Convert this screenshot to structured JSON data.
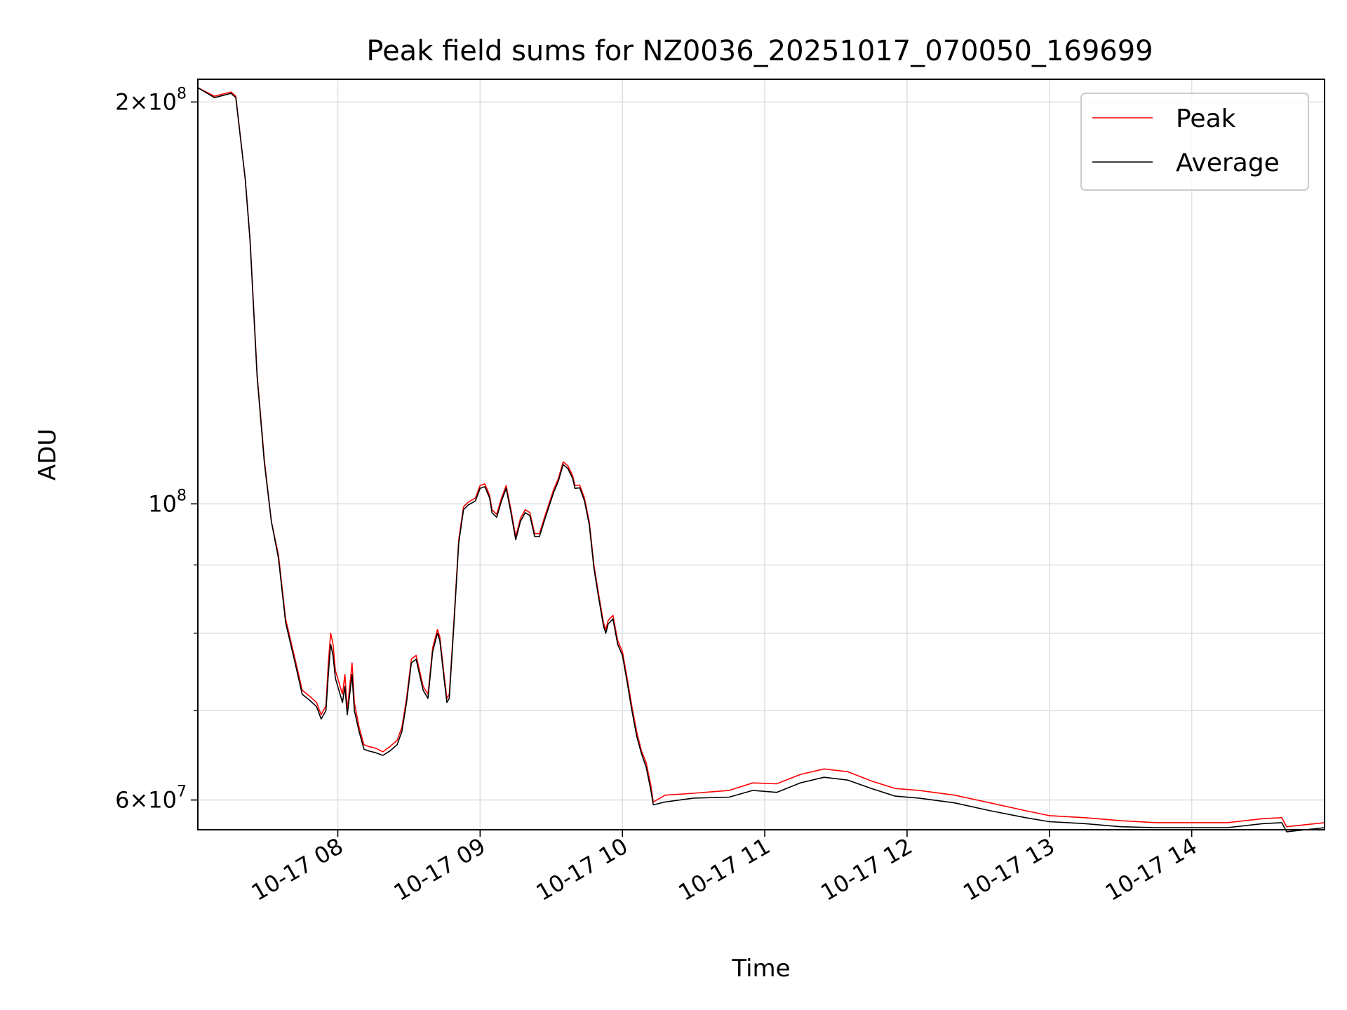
{
  "chart_data": {
    "type": "line",
    "title": "Peak field sums for NZ0036_20251017_070050_169699",
    "xlabel": "Time",
    "ylabel": "ADU",
    "x_scale": "time",
    "y_scale": "log",
    "xlim": [
      "2025-10-17 07:01",
      "2025-10-17 14:56"
    ],
    "ylim": [
      57000000,
      208000000
    ],
    "x_ticks": [
      {
        "value": "2025-10-17 08:00",
        "label": "10-17 08"
      },
      {
        "value": "2025-10-17 09:00",
        "label": "10-17 09"
      },
      {
        "value": "2025-10-17 10:00",
        "label": "10-17 10"
      },
      {
        "value": "2025-10-17 11:00",
        "label": "10-17 11"
      },
      {
        "value": "2025-10-17 12:00",
        "label": "10-17 12"
      },
      {
        "value": "2025-10-17 13:00",
        "label": "10-17 13"
      },
      {
        "value": "2025-10-17 14:00",
        "label": "10-17 14"
      }
    ],
    "y_ticks": [
      {
        "value": 200000000,
        "base": "2×10",
        "exp": "8"
      },
      {
        "value": 100000000,
        "base": "10",
        "exp": "8"
      },
      {
        "value": 60000000,
        "base": "6×10",
        "exp": "7"
      }
    ],
    "y_minor_ticks": [
      70000000,
      80000000,
      90000000
    ],
    "grid": true,
    "legend_position": "top-right",
    "series": [
      {
        "name": "Peak",
        "color": "#ff0000",
        "points": [
          [
            "2025-10-17 07:01",
            205000000
          ],
          [
            "2025-10-17 07:08",
            202000000
          ],
          [
            "2025-10-17 07:15",
            203500000
          ],
          [
            "2025-10-17 07:17",
            202000000
          ],
          [
            "2025-10-17 07:21",
            175000000
          ],
          [
            "2025-10-17 07:23",
            158000000
          ],
          [
            "2025-10-17 07:26",
            125000000
          ],
          [
            "2025-10-17 07:29",
            108000000
          ],
          [
            "2025-10-17 07:32",
            97000000
          ],
          [
            "2025-10-17 07:35",
            91500000
          ],
          [
            "2025-10-17 07:38",
            82000000
          ],
          [
            "2025-10-17 07:42",
            76500000
          ],
          [
            "2025-10-17 07:45",
            72500000
          ],
          [
            "2025-10-17 07:48",
            71800000
          ],
          [
            "2025-10-17 07:51",
            71000000
          ],
          [
            "2025-10-17 07:53",
            69500000
          ],
          [
            "2025-10-17 07:55",
            70600000
          ],
          [
            "2025-10-17 07:56",
            76000000
          ],
          [
            "2025-10-17 07:57",
            80000000
          ],
          [
            "2025-10-17 07:58",
            78500000
          ],
          [
            "2025-10-17 07:59",
            75000000
          ],
          [
            "2025-10-17 08:02",
            72000000
          ],
          [
            "2025-10-17 08:03",
            74500000
          ],
          [
            "2025-10-17 08:04",
            70000000
          ],
          [
            "2025-10-17 08:06",
            76000000
          ],
          [
            "2025-10-17 08:07",
            71000000
          ],
          [
            "2025-10-17 08:09",
            68000000
          ],
          [
            "2025-10-17 08:11",
            66000000
          ],
          [
            "2025-10-17 08:13",
            65800000
          ],
          [
            "2025-10-17 08:16",
            65600000
          ],
          [
            "2025-10-17 08:19",
            65200000
          ],
          [
            "2025-10-17 08:22",
            65800000
          ],
          [
            "2025-10-17 08:25",
            66500000
          ],
          [
            "2025-10-17 08:27",
            68000000
          ],
          [
            "2025-10-17 08:29",
            71500000
          ],
          [
            "2025-10-17 08:31",
            76500000
          ],
          [
            "2025-10-17 08:33",
            77000000
          ],
          [
            "2025-10-17 08:36",
            73000000
          ],
          [
            "2025-10-17 08:38",
            72000000
          ],
          [
            "2025-10-17 08:40",
            78000000
          ],
          [
            "2025-10-17 08:42",
            80500000
          ],
          [
            "2025-10-17 08:43",
            79500000
          ],
          [
            "2025-10-17 08:45",
            74000000
          ],
          [
            "2025-10-17 08:46",
            71500000
          ],
          [
            "2025-10-17 08:47",
            72000000
          ],
          [
            "2025-10-17 08:49",
            82000000
          ],
          [
            "2025-10-17 08:51",
            94000000
          ],
          [
            "2025-10-17 08:53",
            99500000
          ],
          [
            "2025-10-17 08:55",
            100300000
          ],
          [
            "2025-10-17 08:58",
            101000000
          ],
          [
            "2025-10-17 09:00",
            103200000
          ],
          [
            "2025-10-17 09:02",
            103500000
          ],
          [
            "2025-10-17 09:04",
            101500000
          ],
          [
            "2025-10-17 09:05",
            99000000
          ],
          [
            "2025-10-17 09:07",
            98200000
          ],
          [
            "2025-10-17 09:09",
            101000000
          ],
          [
            "2025-10-17 09:11",
            103200000
          ],
          [
            "2025-10-17 09:13",
            99000000
          ],
          [
            "2025-10-17 09:15",
            94500000
          ],
          [
            "2025-10-17 09:17",
            97500000
          ],
          [
            "2025-10-17 09:19",
            99000000
          ],
          [
            "2025-10-17 09:21",
            98500000
          ],
          [
            "2025-10-17 09:23",
            95000000
          ],
          [
            "2025-10-17 09:25",
            95000000
          ],
          [
            "2025-10-17 09:27",
            97500000
          ],
          [
            "2025-10-17 09:29",
            100000000
          ],
          [
            "2025-10-17 09:31",
            102500000
          ],
          [
            "2025-10-17 09:33",
            104500000
          ],
          [
            "2025-10-17 09:35",
            107500000
          ],
          [
            "2025-10-17 09:37",
            106800000
          ],
          [
            "2025-10-17 09:39",
            105000000
          ],
          [
            "2025-10-17 09:40",
            103200000
          ],
          [
            "2025-10-17 09:42",
            103300000
          ],
          [
            "2025-10-17 09:44",
            101000000
          ],
          [
            "2025-10-17 09:46",
            97000000
          ],
          [
            "2025-10-17 09:48",
            90000000
          ],
          [
            "2025-10-17 09:50",
            85500000
          ],
          [
            "2025-10-17 09:52",
            81500000
          ],
          [
            "2025-10-17 09:53",
            80500000
          ],
          [
            "2025-10-17 09:54",
            81800000
          ],
          [
            "2025-10-17 09:56",
            82500000
          ],
          [
            "2025-10-17 09:58",
            79000000
          ],
          [
            "2025-10-17 10:00",
            77500000
          ],
          [
            "2025-10-17 10:02",
            74000000
          ],
          [
            "2025-10-17 10:04",
            70500000
          ],
          [
            "2025-10-17 10:06",
            67500000
          ],
          [
            "2025-10-17 10:08",
            65300000
          ],
          [
            "2025-10-17 10:10",
            64000000
          ],
          [
            "2025-10-17 10:12",
            61500000
          ],
          [
            "2025-10-17 10:13",
            59800000
          ],
          [
            "2025-10-17 10:18",
            60500000
          ],
          [
            "2025-10-17 10:30",
            60700000
          ],
          [
            "2025-10-17 10:45",
            61000000
          ],
          [
            "2025-10-17 10:55",
            61800000
          ],
          [
            "2025-10-17 11:05",
            61700000
          ],
          [
            "2025-10-17 11:15",
            62700000
          ],
          [
            "2025-10-17 11:25",
            63300000
          ],
          [
            "2025-10-17 11:35",
            63000000
          ],
          [
            "2025-10-17 11:45",
            62000000
          ],
          [
            "2025-10-17 11:55",
            61200000
          ],
          [
            "2025-10-17 12:05",
            61000000
          ],
          [
            "2025-10-17 12:20",
            60500000
          ],
          [
            "2025-10-17 12:35",
            59700000
          ],
          [
            "2025-10-17 12:50",
            58900000
          ],
          [
            "2025-10-17 13:00",
            58400000
          ],
          [
            "2025-10-17 13:15",
            58200000
          ],
          [
            "2025-10-17 13:30",
            57900000
          ],
          [
            "2025-10-17 13:45",
            57700000
          ],
          [
            "2025-10-17 14:00",
            57700000
          ],
          [
            "2025-10-17 14:15",
            57700000
          ],
          [
            "2025-10-17 14:30",
            58100000
          ],
          [
            "2025-10-17 14:38",
            58200000
          ],
          [
            "2025-10-17 14:40",
            57300000
          ],
          [
            "2025-10-17 14:48",
            57500000
          ],
          [
            "2025-10-17 14:56",
            57700000
          ]
        ]
      },
      {
        "name": "Average",
        "color": "#000000",
        "points": [
          [
            "2025-10-17 07:01",
            205000000
          ],
          [
            "2025-10-17 07:08",
            201500000
          ],
          [
            "2025-10-17 07:15",
            203000000
          ],
          [
            "2025-10-17 07:17",
            201500000
          ],
          [
            "2025-10-17 07:21",
            175000000
          ],
          [
            "2025-10-17 07:23",
            157500000
          ],
          [
            "2025-10-17 07:26",
            124500000
          ],
          [
            "2025-10-17 07:29",
            107500000
          ],
          [
            "2025-10-17 07:32",
            97000000
          ],
          [
            "2025-10-17 07:35",
            91000000
          ],
          [
            "2025-10-17 07:38",
            81500000
          ],
          [
            "2025-10-17 07:42",
            76000000
          ],
          [
            "2025-10-17 07:45",
            72000000
          ],
          [
            "2025-10-17 07:48",
            71300000
          ],
          [
            "2025-10-17 07:51",
            70500000
          ],
          [
            "2025-10-17 07:53",
            69000000
          ],
          [
            "2025-10-17 07:55",
            70000000
          ],
          [
            "2025-10-17 07:56",
            74500000
          ],
          [
            "2025-10-17 07:57",
            78500000
          ],
          [
            "2025-10-17 07:58",
            77000000
          ],
          [
            "2025-10-17 07:59",
            74000000
          ],
          [
            "2025-10-17 08:02",
            71000000
          ],
          [
            "2025-10-17 08:03",
            73000000
          ],
          [
            "2025-10-17 08:04",
            69500000
          ],
          [
            "2025-10-17 08:06",
            74500000
          ],
          [
            "2025-10-17 08:07",
            70000000
          ],
          [
            "2025-10-17 08:09",
            67500000
          ],
          [
            "2025-10-17 08:11",
            65500000
          ],
          [
            "2025-10-17 08:13",
            65300000
          ],
          [
            "2025-10-17 08:16",
            65100000
          ],
          [
            "2025-10-17 08:19",
            64800000
          ],
          [
            "2025-10-17 08:22",
            65300000
          ],
          [
            "2025-10-17 08:25",
            66000000
          ],
          [
            "2025-10-17 08:27",
            67500000
          ],
          [
            "2025-10-17 08:29",
            71000000
          ],
          [
            "2025-10-17 08:31",
            76000000
          ],
          [
            "2025-10-17 08:33",
            76500000
          ],
          [
            "2025-10-17 08:36",
            72500000
          ],
          [
            "2025-10-17 08:38",
            71500000
          ],
          [
            "2025-10-17 08:40",
            77500000
          ],
          [
            "2025-10-17 08:42",
            80000000
          ],
          [
            "2025-10-17 08:43",
            79000000
          ],
          [
            "2025-10-17 08:45",
            73500000
          ],
          [
            "2025-10-17 08:46",
            71000000
          ],
          [
            "2025-10-17 08:47",
            71500000
          ],
          [
            "2025-10-17 08:49",
            81500000
          ],
          [
            "2025-10-17 08:51",
            93500000
          ],
          [
            "2025-10-17 08:53",
            99000000
          ],
          [
            "2025-10-17 08:55",
            99800000
          ],
          [
            "2025-10-17 08:58",
            100500000
          ],
          [
            "2025-10-17 09:00",
            102700000
          ],
          [
            "2025-10-17 09:02",
            103000000
          ],
          [
            "2025-10-17 09:04",
            101000000
          ],
          [
            "2025-10-17 09:05",
            98500000
          ],
          [
            "2025-10-17 09:07",
            97700000
          ],
          [
            "2025-10-17 09:09",
            100500000
          ],
          [
            "2025-10-17 09:11",
            102700000
          ],
          [
            "2025-10-17 09:13",
            98500000
          ],
          [
            "2025-10-17 09:15",
            94000000
          ],
          [
            "2025-10-17 09:17",
            97000000
          ],
          [
            "2025-10-17 09:19",
            98500000
          ],
          [
            "2025-10-17 09:21",
            98000000
          ],
          [
            "2025-10-17 09:23",
            94500000
          ],
          [
            "2025-10-17 09:25",
            94500000
          ],
          [
            "2025-10-17 09:27",
            97000000
          ],
          [
            "2025-10-17 09:29",
            99500000
          ],
          [
            "2025-10-17 09:31",
            102000000
          ],
          [
            "2025-10-17 09:33",
            104000000
          ],
          [
            "2025-10-17 09:35",
            107000000
          ],
          [
            "2025-10-17 09:37",
            106300000
          ],
          [
            "2025-10-17 09:39",
            104500000
          ],
          [
            "2025-10-17 09:40",
            102700000
          ],
          [
            "2025-10-17 09:42",
            102800000
          ],
          [
            "2025-10-17 09:44",
            100500000
          ],
          [
            "2025-10-17 09:46",
            96500000
          ],
          [
            "2025-10-17 09:48",
            89500000
          ],
          [
            "2025-10-17 09:50",
            85000000
          ],
          [
            "2025-10-17 09:52",
            81000000
          ],
          [
            "2025-10-17 09:53",
            80000000
          ],
          [
            "2025-10-17 09:54",
            81300000
          ],
          [
            "2025-10-17 09:56",
            82000000
          ],
          [
            "2025-10-17 09:58",
            78500000
          ],
          [
            "2025-10-17 10:00",
            77000000
          ],
          [
            "2025-10-17 10:02",
            73500000
          ],
          [
            "2025-10-17 10:04",
            70000000
          ],
          [
            "2025-10-17 10:06",
            67000000
          ],
          [
            "2025-10-17 10:08",
            65000000
          ],
          [
            "2025-10-17 10:10",
            63500000
          ],
          [
            "2025-10-17 10:12",
            61000000
          ],
          [
            "2025-10-17 10:13",
            59500000
          ],
          [
            "2025-10-17 10:18",
            59800000
          ],
          [
            "2025-10-17 10:30",
            60200000
          ],
          [
            "2025-10-17 10:45",
            60300000
          ],
          [
            "2025-10-17 10:55",
            61000000
          ],
          [
            "2025-10-17 11:05",
            60800000
          ],
          [
            "2025-10-17 11:15",
            61800000
          ],
          [
            "2025-10-17 11:25",
            62400000
          ],
          [
            "2025-10-17 11:35",
            62100000
          ],
          [
            "2025-10-17 11:45",
            61200000
          ],
          [
            "2025-10-17 11:55",
            60400000
          ],
          [
            "2025-10-17 12:05",
            60200000
          ],
          [
            "2025-10-17 12:20",
            59700000
          ],
          [
            "2025-10-17 12:35",
            58900000
          ],
          [
            "2025-10-17 12:50",
            58200000
          ],
          [
            "2025-10-17 13:00",
            57800000
          ],
          [
            "2025-10-17 13:15",
            57600000
          ],
          [
            "2025-10-17 13:30",
            57300000
          ],
          [
            "2025-10-17 13:45",
            57200000
          ],
          [
            "2025-10-17 14:00",
            57200000
          ],
          [
            "2025-10-17 14:15",
            57200000
          ],
          [
            "2025-10-17 14:30",
            57600000
          ],
          [
            "2025-10-17 14:38",
            57700000
          ],
          [
            "2025-10-17 14:40",
            56800000
          ],
          [
            "2025-10-17 14:48",
            57000000
          ],
          [
            "2025-10-17 14:56",
            57200000
          ]
        ]
      }
    ]
  }
}
